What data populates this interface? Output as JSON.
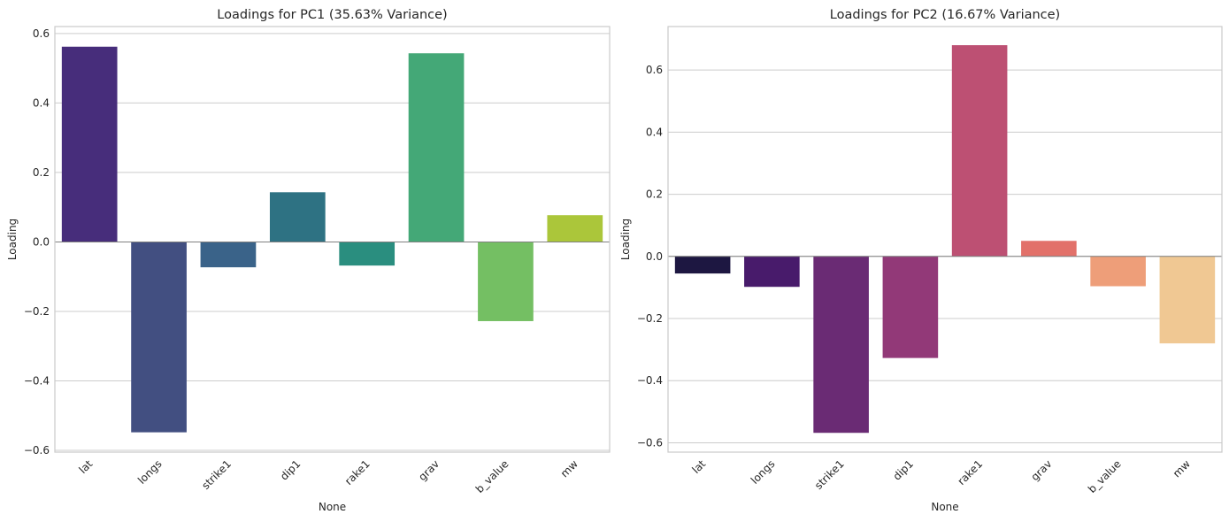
{
  "chart_data": [
    {
      "type": "bar",
      "title": "Loadings for PC1 (35.63% Variance)",
      "xlabel": "None",
      "ylabel": "Loading",
      "categories": [
        "lat",
        "longs",
        "strike1",
        "dip1",
        "rake1",
        "grav",
        "b_value",
        "mw"
      ],
      "values": [
        0.562,
        -0.548,
        -0.073,
        0.143,
        -0.068,
        0.543,
        -0.228,
        0.077
      ],
      "colors": [
        "#472d7b",
        "#424f81",
        "#3a6389",
        "#2e7283",
        "#2a8e7f",
        "#44a877",
        "#74bf63",
        "#abc63a"
      ],
      "ylim": [
        -0.605,
        0.62
      ],
      "yticks": [
        -0.6,
        -0.4,
        -0.2,
        0.0,
        0.2,
        0.4,
        0.6
      ],
      "ytick_labels": [
        "−0.6",
        "−0.4",
        "−0.2",
        "0.0",
        "0.2",
        "0.4",
        "0.6"
      ],
      "grid": true
    },
    {
      "type": "bar",
      "title": "Loadings for PC2 (16.67% Variance)",
      "xlabel": "None",
      "ylabel": "Loading",
      "categories": [
        "lat",
        "longs",
        "strike1",
        "dip1",
        "rake1",
        "grav",
        "b_value",
        "mw"
      ],
      "values": [
        -0.055,
        -0.098,
        -0.568,
        -0.327,
        0.68,
        0.05,
        -0.096,
        -0.28
      ],
      "colors": [
        "#1d1741",
        "#481b6b",
        "#6a2b74",
        "#923978",
        "#bd5073",
        "#e2716a",
        "#ee9e79",
        "#f0c893"
      ],
      "ylim": [
        -0.63,
        0.74
      ],
      "yticks": [
        -0.6,
        -0.4,
        -0.2,
        0.0,
        0.2,
        0.4,
        0.6
      ],
      "ytick_labels": [
        "−0.6",
        "−0.4",
        "−0.2",
        "0.0",
        "0.2",
        "0.4",
        "0.6"
      ],
      "grid": true
    }
  ]
}
